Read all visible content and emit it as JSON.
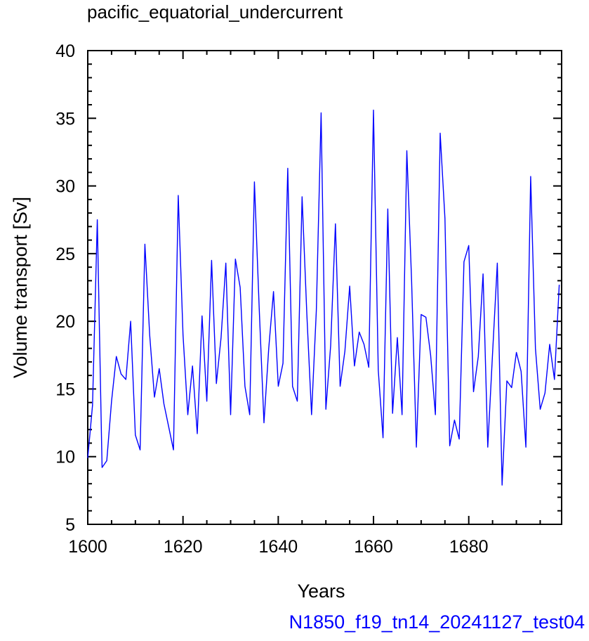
{
  "chart_data": {
    "type": "line",
    "title": "pacific_equatorial_undercurrent",
    "xlabel": "Years",
    "ylabel": "Volume transport [Sv]",
    "caption": "N1850_f19_tn14_20241127_test04",
    "xlim": [
      1600,
      1699
    ],
    "ylim": [
      5,
      40
    ],
    "x_ticks": [
      1600,
      1620,
      1640,
      1660,
      1680
    ],
    "y_ticks": [
      5,
      10,
      15,
      20,
      25,
      30,
      35,
      40
    ],
    "grid": false,
    "line_color": "#0000ff",
    "series": [
      {
        "x": [
          1600,
          1601,
          1602,
          1603,
          1604,
          1605,
          1606,
          1607,
          1608,
          1609,
          1610,
          1611,
          1612,
          1613,
          1614,
          1615,
          1616,
          1617,
          1618,
          1619,
          1620,
          1621,
          1622,
          1623,
          1624,
          1625,
          1626,
          1627,
          1628,
          1629,
          1630,
          1631,
          1632,
          1633,
          1634,
          1635,
          1636,
          1637,
          1638,
          1639,
          1640,
          1641,
          1642,
          1643,
          1644,
          1645,
          1646,
          1647,
          1648,
          1649,
          1650,
          1651,
          1652,
          1653,
          1654,
          1655,
          1656,
          1657,
          1658,
          1659,
          1660,
          1661,
          1662,
          1663,
          1664,
          1665,
          1666,
          1667,
          1668,
          1669,
          1670,
          1671,
          1672,
          1673,
          1674,
          1675,
          1676,
          1677,
          1678,
          1679,
          1680,
          1681,
          1682,
          1683,
          1684,
          1685,
          1686,
          1687,
          1688,
          1689,
          1690,
          1691,
          1692,
          1693,
          1694,
          1695,
          1696,
          1697,
          1698,
          1699
        ],
        "values": [
          9.9,
          13.8,
          27.5,
          9.2,
          9.7,
          14.1,
          17.4,
          16.1,
          15.7,
          20.0,
          11.6,
          10.5,
          25.7,
          19.0,
          14.4,
          16.5,
          13.9,
          12.2,
          10.5,
          29.3,
          19.0,
          13.1,
          16.7,
          11.7,
          20.4,
          14.1,
          24.5,
          15.4,
          18.8,
          24.3,
          13.1,
          24.6,
          22.5,
          15.2,
          13.1,
          30.3,
          21.0,
          12.5,
          18.0,
          22.2,
          15.2,
          16.9,
          31.3,
          15.2,
          14.1,
          29.2,
          20.5,
          13.1,
          20.8,
          35.4,
          13.5,
          18.2,
          27.2,
          15.2,
          17.8,
          22.6,
          16.7,
          19.2,
          18.3,
          16.6,
          35.6,
          16.4,
          11.4,
          28.3,
          13.2,
          18.8,
          13.1,
          32.6,
          23.0,
          10.7,
          20.5,
          20.3,
          17.5,
          13.1,
          33.9,
          27.6,
          10.8,
          12.7,
          11.3,
          24.4,
          25.6,
          14.8,
          17.4,
          23.5,
          10.7,
          17.6,
          24.3,
          7.9,
          15.6,
          15.1,
          17.7,
          16.3,
          10.7,
          30.7,
          18.0,
          13.5,
          14.7,
          18.3,
          15.7,
          22.7
        ]
      }
    ]
  }
}
